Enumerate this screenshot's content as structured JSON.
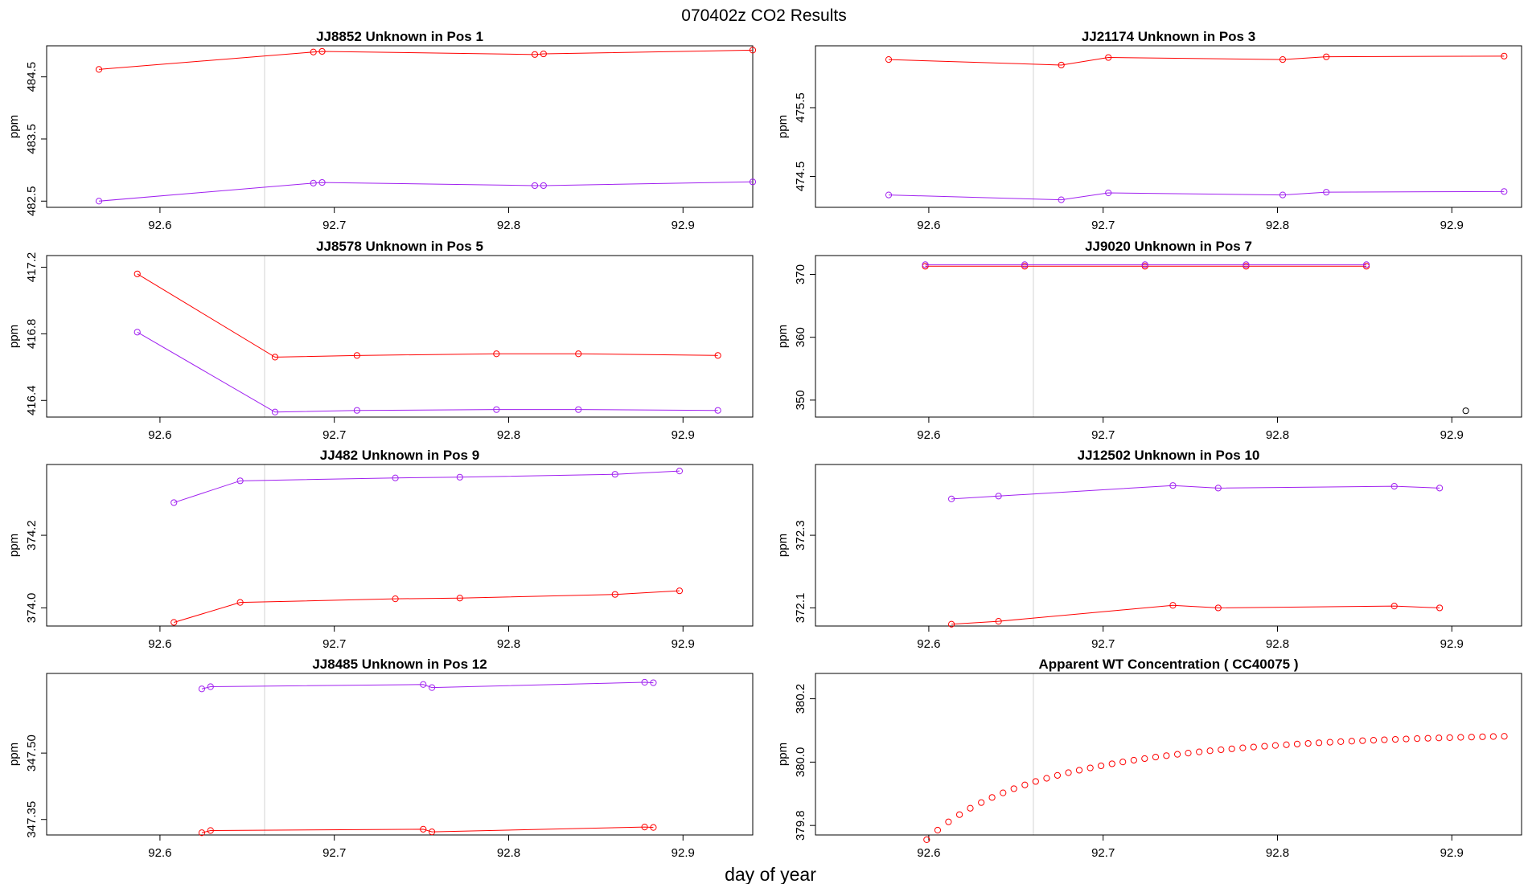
{
  "page_title": "070402z  CO2 Results",
  "x_axis_label": "day of year",
  "colors": {
    "red": "#ff0000",
    "purple": "#a020f0",
    "frame": "#000000",
    "vline": "#d3d3d3"
  },
  "chart_data": [
    {
      "type": "line",
      "title": "JJ8852    Unknown in Pos 1",
      "ylabel": "ppm",
      "xlim": [
        92.535,
        92.94
      ],
      "ylim": [
        482.4,
        485.0
      ],
      "xticks": [
        92.6,
        92.7,
        92.8,
        92.9
      ],
      "xtick_labels": [
        "92.6",
        "92.7",
        "92.8",
        "92.9"
      ],
      "yticks": [
        482.5,
        483.5,
        484.5
      ],
      "ytick_labels": [
        "482.5",
        "483.5",
        "484.5"
      ],
      "vlines": [
        92.66,
        92.94
      ],
      "series": [
        {
          "name": "red",
          "color": "#ff0000",
          "x": [
            92.565,
            92.688,
            92.693,
            92.815,
            92.82,
            92.94
          ],
          "y": [
            484.62,
            484.9,
            484.91,
            484.86,
            484.87,
            484.93
          ]
        },
        {
          "name": "purple",
          "color": "#a020f0",
          "x": [
            92.565,
            92.688,
            92.693,
            92.815,
            92.82,
            92.94
          ],
          "y": [
            482.5,
            482.79,
            482.8,
            482.75,
            482.75,
            482.81
          ]
        }
      ]
    },
    {
      "type": "line",
      "title": "JJ21174    Unknown in Pos 3",
      "ylabel": "ppm",
      "xlim": [
        92.535,
        92.94
      ],
      "ylim": [
        474.05,
        476.4
      ],
      "xticks": [
        92.6,
        92.7,
        92.8,
        92.9
      ],
      "xtick_labels": [
        "92.6",
        "92.7",
        "92.8",
        "92.9"
      ],
      "yticks": [
        474.5,
        475.5
      ],
      "ytick_labels": [
        "474.5",
        "475.5"
      ],
      "vlines": [
        92.66,
        92.94
      ],
      "series": [
        {
          "name": "red",
          "color": "#ff0000",
          "x": [
            92.577,
            92.676,
            92.703,
            92.803,
            92.828,
            92.93
          ],
          "y": [
            476.2,
            476.12,
            476.23,
            476.2,
            476.24,
            476.25
          ]
        },
        {
          "name": "purple",
          "color": "#a020f0",
          "x": [
            92.577,
            92.676,
            92.703,
            92.803,
            92.828,
            92.93
          ],
          "y": [
            474.23,
            474.16,
            474.26,
            474.23,
            474.27,
            474.28
          ]
        }
      ]
    },
    {
      "type": "line",
      "title": "JJ8578    Unknown in Pos 5",
      "ylabel": "ppm",
      "xlim": [
        92.535,
        92.94
      ],
      "ylim": [
        416.3,
        417.27
      ],
      "xticks": [
        92.6,
        92.7,
        92.8,
        92.9
      ],
      "xtick_labels": [
        "92.6",
        "92.7",
        "92.8",
        "92.9"
      ],
      "yticks": [
        416.4,
        416.8,
        417.2
      ],
      "ytick_labels": [
        "416.4",
        "416.8",
        "417.2"
      ],
      "vlines": [
        92.66,
        92.94
      ],
      "series": [
        {
          "name": "red",
          "color": "#ff0000",
          "x": [
            92.587,
            92.666,
            92.713,
            92.793,
            92.84,
            92.92
          ],
          "y": [
            417.16,
            416.66,
            416.67,
            416.68,
            416.68,
            416.67
          ]
        },
        {
          "name": "purple",
          "color": "#a020f0",
          "x": [
            92.587,
            92.666,
            92.713,
            92.793,
            92.84,
            92.92
          ],
          "y": [
            416.81,
            416.33,
            416.34,
            416.345,
            416.345,
            416.34
          ]
        }
      ]
    },
    {
      "type": "line",
      "title": "JJ9020    Unknown in Pos 7",
      "ylabel": "ppm",
      "xlim": [
        92.535,
        92.94
      ],
      "ylim": [
        347.3,
        373.0
      ],
      "xticks": [
        92.6,
        92.7,
        92.8,
        92.9
      ],
      "xtick_labels": [
        "92.6",
        "92.7",
        "92.8",
        "92.9"
      ],
      "yticks": [
        350,
        360,
        370
      ],
      "ytick_labels": [
        "350",
        "360",
        "370"
      ],
      "vlines": [
        92.66,
        92.94
      ],
      "series": [
        {
          "name": "red",
          "color": "#ff0000",
          "x": [
            92.598,
            92.655,
            92.724,
            92.782,
            92.851
          ],
          "y": [
            371.3,
            371.3,
            371.3,
            371.3,
            371.3
          ]
        },
        {
          "name": "purple",
          "color": "#a020f0",
          "x": [
            92.598,
            92.655,
            92.724,
            92.782,
            92.851
          ],
          "y": [
            371.55,
            371.55,
            371.55,
            371.55,
            371.55
          ]
        },
        {
          "name": "dark",
          "color": "#000000",
          "x": [
            92.908
          ],
          "y": [
            348.3
          ],
          "markers_only": true
        }
      ]
    },
    {
      "type": "line",
      "title": "JJ482    Unknown in Pos 9",
      "ylabel": "ppm",
      "xlim": [
        92.535,
        92.94
      ],
      "ylim": [
        373.95,
        374.395
      ],
      "xticks": [
        92.6,
        92.7,
        92.8,
        92.9
      ],
      "xtick_labels": [
        "92.6",
        "92.7",
        "92.8",
        "92.9"
      ],
      "yticks": [
        374.0,
        374.2
      ],
      "ytick_labels": [
        "374.0",
        "374.2"
      ],
      "vlines": [
        92.66,
        92.94
      ],
      "series": [
        {
          "name": "red",
          "color": "#ff0000",
          "x": [
            92.608,
            92.646,
            92.735,
            92.772,
            92.861,
            92.898
          ],
          "y": [
            373.96,
            374.015,
            374.025,
            374.027,
            374.037,
            374.047
          ]
        },
        {
          "name": "purple",
          "color": "#a020f0",
          "x": [
            92.608,
            92.646,
            92.735,
            92.772,
            92.861,
            92.898
          ],
          "y": [
            374.29,
            374.35,
            374.358,
            374.36,
            374.368,
            374.377
          ]
        }
      ]
    },
    {
      "type": "line",
      "title": "JJ12502    Unknown in Pos 10",
      "ylabel": "ppm",
      "xlim": [
        92.535,
        92.94
      ],
      "ylim": [
        372.05,
        372.495
      ],
      "xticks": [
        92.6,
        92.7,
        92.8,
        92.9
      ],
      "xtick_labels": [
        "92.6",
        "92.7",
        "92.8",
        "92.9"
      ],
      "yticks": [
        372.1,
        372.3
      ],
      "ytick_labels": [
        "372.1",
        "372.3"
      ],
      "vlines": [
        92.66,
        92.94
      ],
      "series": [
        {
          "name": "red",
          "color": "#ff0000",
          "x": [
            92.613,
            92.64,
            92.74,
            92.766,
            92.867,
            92.893
          ],
          "y": [
            372.055,
            372.063,
            372.107,
            372.1,
            372.105,
            372.1
          ]
        },
        {
          "name": "purple",
          "color": "#a020f0",
          "x": [
            92.613,
            92.64,
            92.74,
            92.766,
            92.867,
            92.893
          ],
          "y": [
            372.4,
            372.408,
            372.437,
            372.43,
            372.435,
            372.43
          ]
        }
      ]
    },
    {
      "type": "line",
      "title": "JJ8485    Unknown in Pos 12",
      "ylabel": "ppm",
      "xlim": [
        92.535,
        92.94
      ],
      "ylim": [
        347.315,
        347.68
      ],
      "xticks": [
        92.6,
        92.7,
        92.8,
        92.9
      ],
      "xtick_labels": [
        "92.6",
        "92.7",
        "92.8",
        "92.9"
      ],
      "yticks": [
        347.35,
        347.5
      ],
      "ytick_labels": [
        "347.35",
        "347.50"
      ],
      "vlines": [
        92.66,
        92.94
      ],
      "series": [
        {
          "name": "red",
          "color": "#ff0000",
          "x": [
            92.624,
            92.629,
            92.751,
            92.756,
            92.878,
            92.883
          ],
          "y": [
            347.32,
            347.325,
            347.328,
            347.322,
            347.333,
            347.332
          ]
        },
        {
          "name": "purple",
          "color": "#a020f0",
          "x": [
            92.624,
            92.629,
            92.751,
            92.756,
            92.878,
            92.883
          ],
          "y": [
            347.645,
            347.65,
            347.655,
            347.648,
            347.66,
            347.659
          ]
        }
      ]
    },
    {
      "type": "scatter",
      "title": "Apparent WT Concentration ( CC40075 )",
      "ylabel": "ppm",
      "xlim": [
        92.535,
        92.94
      ],
      "ylim": [
        379.77,
        380.28
      ],
      "xticks": [
        92.6,
        92.7,
        92.8,
        92.9
      ],
      "xtick_labels": [
        "92.6",
        "92.7",
        "92.8",
        "92.9"
      ],
      "yticks": [
        379.8,
        380.0,
        380.2
      ],
      "ytick_labels": [
        "379.8",
        "380.0",
        "380.2"
      ],
      "vlines": [
        92.66,
        92.94
      ],
      "series": [
        {
          "name": "red",
          "color": "#ff0000",
          "markers_only": true,
          "x": [
            92.5988,
            92.6051,
            92.6113,
            92.6176,
            92.6238,
            92.6301,
            92.6363,
            92.6426,
            92.6488,
            92.6551,
            92.6613,
            92.6676,
            92.6738,
            92.6801,
            92.6863,
            92.6926,
            92.6988,
            92.7051,
            92.7113,
            92.7176,
            92.7238,
            92.7301,
            92.7363,
            92.7426,
            92.7488,
            92.7551,
            92.7613,
            92.7676,
            92.7738,
            92.7801,
            92.7863,
            92.7926,
            92.7988,
            92.8051,
            92.8113,
            92.8176,
            92.8238,
            92.8301,
            92.8363,
            92.8426,
            92.8488,
            92.8551,
            92.8613,
            92.8676,
            92.8738,
            92.8801,
            92.8863,
            92.8926,
            92.8988,
            92.9051,
            92.9113,
            92.9176,
            92.9238,
            92.9301
          ],
          "y": [
            379.755,
            379.7852,
            379.8114,
            379.8342,
            379.8544,
            379.8723,
            379.8884,
            379.9029,
            379.9161,
            379.928,
            379.9389,
            379.9489,
            379.9581,
            379.9666,
            379.9744,
            379.9817,
            379.9884,
            379.9947,
            380.0005,
            380.006,
            380.0111,
            380.0159,
            380.0204,
            380.0246,
            380.0285,
            380.0322,
            380.0357,
            380.039,
            380.042,
            380.0449,
            380.0477,
            380.0502,
            380.0526,
            380.0549,
            380.0571,
            380.0591,
            380.061,
            380.0628,
            380.0646,
            380.0662,
            380.0677,
            380.0691,
            380.0705,
            380.0718,
            380.073,
            380.0742,
            380.0753,
            380.0763,
            380.0773,
            380.0782,
            380.0791,
            380.08,
            380.0808,
            380.0815
          ]
        }
      ]
    }
  ]
}
